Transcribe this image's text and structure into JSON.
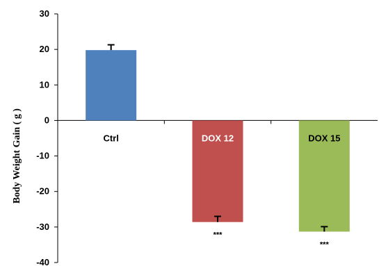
{
  "chart_data": {
    "type": "bar",
    "title": "",
    "xlabel": "",
    "ylabel": "Body Weight Gain ( g )",
    "ylim": [
      -40,
      30
    ],
    "yticks": [
      30,
      20,
      10,
      0,
      -10,
      -20,
      -30,
      -40
    ],
    "grid": false,
    "categories": [
      "Ctrl",
      "DOX 12",
      "DOX 15"
    ],
    "values": [
      19.8,
      -28.6,
      -31.3
    ],
    "errors": [
      1.5,
      1.6,
      1.4
    ],
    "colors": [
      "#4F81BD",
      "#C0504D",
      "#9BBB59"
    ],
    "category_label_colors": [
      "#000000",
      "#FFFFFF",
      "#000000"
    ],
    "significance": [
      "",
      "***",
      "***"
    ]
  }
}
